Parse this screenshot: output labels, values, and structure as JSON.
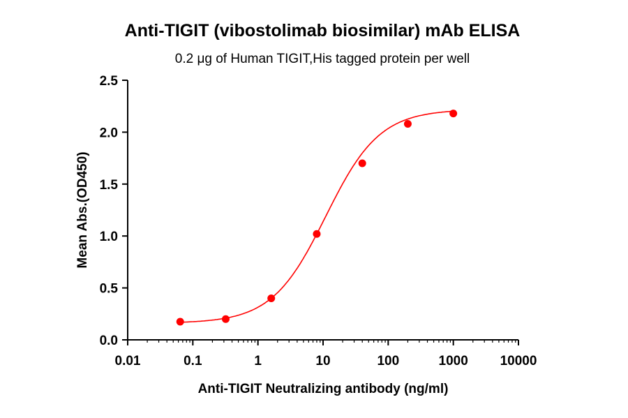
{
  "chart_data": {
    "type": "scatter",
    "title": "Anti-TIGIT (vibostolimab biosimilar) mAb ELISA",
    "subtitle": "0.2 μg of Human TIGIT,His tagged protein per well",
    "xlabel": "Anti-TIGIT Neutralizing antibody (ng/ml)",
    "ylabel": "Mean Abs.(OD450)",
    "xscale": "log",
    "xlim": [
      0.01,
      10000
    ],
    "ylim": [
      0,
      2.5
    ],
    "xticks": [
      "0.01",
      "0.1",
      "1",
      "10",
      "100",
      "1000",
      "10000"
    ],
    "xtick_values": [
      0.01,
      0.1,
      1,
      10,
      100,
      1000,
      10000
    ],
    "yticks": [
      "0.0",
      "0.5",
      "1.0",
      "1.5",
      "2.0",
      "2.5"
    ],
    "ytick_values": [
      0,
      0.5,
      1.0,
      1.5,
      2.0,
      2.5
    ],
    "grid": false,
    "series": [
      {
        "color": "#ff0000",
        "fit": "sigmoidal curve",
        "x": [
          0.064,
          0.32,
          1.6,
          8,
          40,
          200,
          1000
        ],
        "y": [
          0.175,
          0.2,
          0.4,
          1.02,
          1.7,
          2.08,
          2.18
        ]
      }
    ]
  }
}
